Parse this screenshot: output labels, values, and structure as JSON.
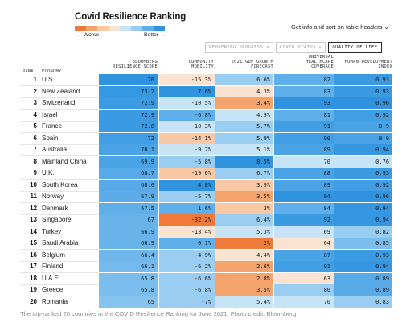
{
  "header": {
    "title": "Covid Resilience Ranking",
    "info": "Get info and sort on table headers",
    "scale_worse": "← Worse",
    "scale_better": "Better →"
  },
  "scale_colors": [
    "#f07a3a",
    "#f5a46e",
    "#f9c9a6",
    "#fbe3d2",
    "#c7e3f6",
    "#99cdf1",
    "#5fb0ea",
    "#2f93e0"
  ],
  "tabs": [
    {
      "label": "REOPENING PROGRESS ∨",
      "active": false
    },
    {
      "label": "COVID STATUS ∨",
      "active": false
    },
    {
      "label": "QUALITY OF LIFE",
      "active": true
    }
  ],
  "columns": {
    "rank": "RANK",
    "economy": "ECONOMY",
    "score_1": "BLOOMBERG",
    "score_2": "RESILIENCE SCORE",
    "mobility_1": "COMMUNITY",
    "mobility_2": "MOBILITY",
    "gdp_1": "2021 GDP GROWTH",
    "gdp_2": "FORECAST",
    "health_1": "UNIVERSAL",
    "health_2": "HEALTHCARE",
    "health_3": "COVERAGE",
    "hdi_1": "HUMAN DEVELOPMENT",
    "hdi_2": "INDEX"
  },
  "chart_data": {
    "type": "table",
    "title": "Covid Resilience Ranking",
    "columns": [
      "Rank",
      "Economy",
      "Bloomberg Resilience Score",
      "Community Mobility",
      "2021 GDP Growth Forecast",
      "Universal Healthcare Coverage",
      "Human Development Index"
    ],
    "rows": [
      {
        "rank": "1",
        "economy": "U.S.",
        "score": "76",
        "mobility": "-15.3%",
        "gdp": "6.6%",
        "health": "82",
        "hdi": "0.93"
      },
      {
        "rank": "2",
        "economy": "New Zealand",
        "score": "73.7",
        "mobility": "7.6%",
        "gdp": "4.3%",
        "health": "83",
        "hdi": "0.93"
      },
      {
        "rank": "3",
        "economy": "Switzerland",
        "score": "72.9",
        "mobility": "-10.5%",
        "gdp": "3.4%",
        "health": "93",
        "hdi": "0.96"
      },
      {
        "rank": "4",
        "economy": "Israel",
        "score": "72.9",
        "mobility": "-6.8%",
        "gdp": "4.9%",
        "health": "81",
        "hdi": "0.92"
      },
      {
        "rank": "5",
        "economy": "France",
        "score": "72.8",
        "mobility": "-10.3%",
        "gdp": "5.7%",
        "health": "91",
        "hdi": "0.9"
      },
      {
        "rank": "6",
        "economy": "Spain",
        "score": "72",
        "mobility": "-14.1%",
        "gdp": "5.9%",
        "health": "90",
        "hdi": "0.9"
      },
      {
        "rank": "7",
        "economy": "Australia",
        "score": "70.1",
        "mobility": "-9.2%",
        "gdp": "5.1%",
        "health": "89",
        "hdi": "0.94"
      },
      {
        "rank": "8",
        "economy": "Mainland China",
        "score": "69.9",
        "mobility": "-5.8%",
        "gdp": "8.5%",
        "health": "70",
        "hdi": "0.76"
      },
      {
        "rank": "9",
        "economy": "U.K.",
        "score": "68.7",
        "mobility": "-19.6%",
        "gdp": "6.7%",
        "health": "88",
        "hdi": "0.93"
      },
      {
        "rank": "10",
        "economy": "South Korea",
        "score": "68.6",
        "mobility": "4.8%",
        "gdp": "3.9%",
        "health": "89",
        "hdi": "0.92"
      },
      {
        "rank": "11",
        "economy": "Norway",
        "score": "67.9",
        "mobility": "-5.7%",
        "gdp": "3.5%",
        "health": "94",
        "hdi": "0.96"
      },
      {
        "rank": "12",
        "economy": "Denmark",
        "score": "67.5",
        "mobility": "1.6%",
        "gdp": "3%",
        "health": "84",
        "hdi": "0.94"
      },
      {
        "rank": "13",
        "economy": "Singapore",
        "score": "67",
        "mobility": "-32.2%",
        "gdp": "6.4%",
        "health": "92",
        "hdi": "0.94"
      },
      {
        "rank": "14",
        "economy": "Turkey",
        "score": "66.9",
        "mobility": "-13.4%",
        "gdp": "5.3%",
        "health": "69",
        "hdi": "0.82"
      },
      {
        "rank": "15",
        "economy": "Saudi Arabia",
        "score": "66.9",
        "mobility": "0.1%",
        "gdp": "2%",
        "health": "64",
        "hdi": "0.85"
      },
      {
        "rank": "16",
        "economy": "Belgium",
        "score": "66.4",
        "mobility": "-4.9%",
        "gdp": "4.4%",
        "health": "87",
        "hdi": "0.93"
      },
      {
        "rank": "17",
        "economy": "Finland",
        "score": "66.1",
        "mobility": "-6.2%",
        "gdp": "2.6%",
        "health": "91",
        "hdi": "0.94"
      },
      {
        "rank": "18",
        "economy": "U.A.E.",
        "score": "65.8",
        "mobility": "-6.6%",
        "gdp": "2.8%",
        "health": "63",
        "hdi": "0.89"
      },
      {
        "rank": "19",
        "economy": "Greece",
        "score": "65.8",
        "mobility": "-6.8%",
        "gdp": "3.5%",
        "health": "80",
        "hdi": "0.89"
      },
      {
        "rank": "20",
        "economy": "Romania",
        "score": "65",
        "mobility": "-7%",
        "gdp": "5.4%",
        "health": "70",
        "hdi": "0.83"
      }
    ]
  },
  "cell_colors": {
    "score": [
      "#2f93e0",
      "#3598e2",
      "#3a9be3",
      "#3a9be3",
      "#3a9be3",
      "#3f9ee4",
      "#4aa3e5",
      "#4aa3e5",
      "#57aae7",
      "#57aae7",
      "#5cace8",
      "#5fb0ea",
      "#67b3ea",
      "#67b3ea",
      "#67b3ea",
      "#6fb7eb",
      "#74baec",
      "#7bbeed",
      "#7bbeed",
      "#86c3ee"
    ],
    "mobility": [
      "#fbe3d2",
      "#2f93e0",
      "#c7e3f6",
      "#5fb0ea",
      "#c7e3f6",
      "#f9c9a6",
      "#c7e3f6",
      "#99cdf1",
      "#f9c9a6",
      "#2f93e0",
      "#99cdf1",
      "#5fb0ea",
      "#f07a3a",
      "#fbe3d2",
      "#5fb0ea",
      "#99cdf1",
      "#99cdf1",
      "#99cdf1",
      "#99cdf1",
      "#99cdf1"
    ],
    "gdp": [
      "#99cdf1",
      "#fbe3d2",
      "#f5a46e",
      "#c7e3f6",
      "#99cdf1",
      "#99cdf1",
      "#c7e3f6",
      "#2f93e0",
      "#99cdf1",
      "#f9c9a6",
      "#f5a46e",
      "#f9c9a6",
      "#99cdf1",
      "#c7e3f6",
      "#f07a3a",
      "#fbe3d2",
      "#f5a46e",
      "#f5a46e",
      "#f5a46e",
      "#c7e3f6"
    ],
    "health": [
      "#5fb0ea",
      "#5fb0ea",
      "#2f93e0",
      "#5fb0ea",
      "#3f9ee4",
      "#3f9ee4",
      "#4aa3e5",
      "#c7e3f6",
      "#4aa3e5",
      "#4aa3e5",
      "#2f93e0",
      "#5fb0ea",
      "#3a9be3",
      "#c7e3f6",
      "#fbe3d2",
      "#4aa3e5",
      "#3f9ee4",
      "#fbe3d2",
      "#99cdf1",
      "#c7e3f6"
    ],
    "hdi": [
      "#3a9be3",
      "#3a9be3",
      "#2f93e0",
      "#3f9ee4",
      "#4aa3e5",
      "#4aa3e5",
      "#3597e1",
      "#c7e3f6",
      "#3a9be3",
      "#3f9ee4",
      "#2f93e0",
      "#3597e1",
      "#3597e1",
      "#99cdf1",
      "#7bbeed",
      "#3a9be3",
      "#3597e1",
      "#57aae7",
      "#57aae7",
      "#99cdf1"
    ]
  },
  "caption": "The top-ranked 20 countries in the COVID Resilience Ranking for June 2021. Photo credit: Bloomberg"
}
